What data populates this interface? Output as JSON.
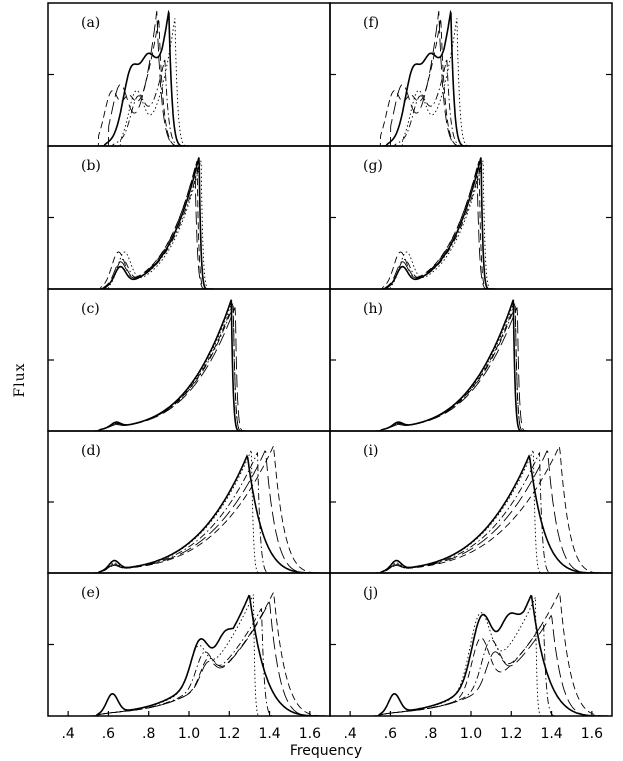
{
  "chart_data": {
    "type": "line",
    "xlabel": "Frequency",
    "ylabel": "Flux",
    "xlim": [
      0.3,
      1.7
    ],
    "x_ticks": [
      ".4",
      ".6",
      ".8",
      "1.0",
      "1.2",
      "1.4",
      "1.6"
    ],
    "x_tick_values": [
      0.4,
      0.6,
      0.8,
      1.0,
      1.2,
      1.4,
      1.6
    ],
    "grid": false,
    "layout": "5 rows x 2 columns of stacked panels sharing the frequency axis",
    "line_styles": [
      "solid",
      "dashed",
      "dotted",
      "dash-dot",
      "long-dash"
    ],
    "panels": [
      {
        "label": "(a)",
        "series": [
          {
            "style": "solid",
            "start": 0.58,
            "end": 0.97,
            "peak_x": 0.9,
            "peak_y": 1.0,
            "shoulders": [
              [
                0.72,
                0.62
              ],
              [
                0.8,
                0.72
              ]
            ]
          },
          {
            "style": "dashed",
            "start": 0.55,
            "end": 0.95,
            "peak_x": 0.85,
            "peak_y": 0.95,
            "shoulders": [
              [
                0.62,
                0.45
              ],
              [
                0.7,
                0.4
              ]
            ]
          },
          {
            "style": "dotted",
            "start": 0.66,
            "end": 0.99,
            "peak_x": 0.93,
            "peak_y": 0.95,
            "shoulders": [
              [
                0.74,
                0.45
              ]
            ]
          },
          {
            "style": "dash-dot",
            "start": 0.62,
            "end": 0.96,
            "peak_x": 0.88,
            "peak_y": 0.65,
            "shoulders": [
              [
                0.75,
                0.4
              ]
            ]
          },
          {
            "style": "long-dash",
            "start": 0.6,
            "end": 0.95,
            "peak_x": 0.84,
            "peak_y": 1.0,
            "shoulders": [
              [
                0.66,
                0.5
              ]
            ]
          }
        ]
      },
      {
        "label": "(b)",
        "series": [
          {
            "style": "solid",
            "start": 0.58,
            "end": 1.09,
            "peak_x": 1.05,
            "peak_y": 0.98,
            "shoulders": [
              [
                0.66,
                0.18
              ]
            ]
          },
          {
            "style": "dashed",
            "start": 0.56,
            "end": 1.08,
            "peak_x": 1.04,
            "peak_y": 0.95,
            "shoulders": [
              [
                0.65,
                0.3
              ]
            ]
          },
          {
            "style": "dotted",
            "start": 0.6,
            "end": 1.1,
            "peak_x": 1.06,
            "peak_y": 0.96,
            "shoulders": [
              [
                0.68,
                0.3
              ]
            ]
          },
          {
            "style": "dash-dot",
            "start": 0.58,
            "end": 1.09,
            "peak_x": 1.05,
            "peak_y": 0.92,
            "shoulders": [
              [
                0.67,
                0.24
              ]
            ]
          },
          {
            "style": "long-dash",
            "start": 0.57,
            "end": 1.08,
            "peak_x": 1.03,
            "peak_y": 0.9,
            "shoulders": [
              [
                0.66,
                0.22
              ]
            ]
          }
        ]
      },
      {
        "label": "(c)",
        "series": [
          {
            "style": "solid",
            "start": 0.55,
            "end": 1.25,
            "peak_x": 1.21,
            "peak_y": 0.98,
            "shoulders": [
              [
                0.64,
                0.07
              ]
            ]
          },
          {
            "style": "dashed",
            "start": 0.55,
            "end": 1.26,
            "peak_x": 1.22,
            "peak_y": 0.96,
            "shoulders": [
              [
                0.64,
                0.06
              ]
            ]
          },
          {
            "style": "dotted",
            "start": 0.55,
            "end": 1.25,
            "peak_x": 1.21,
            "peak_y": 0.95,
            "shoulders": [
              [
                0.64,
                0.06
              ]
            ]
          },
          {
            "style": "dash-dot",
            "start": 0.55,
            "end": 1.26,
            "peak_x": 1.22,
            "peak_y": 0.94,
            "shoulders": [
              [
                0.64,
                0.05
              ]
            ]
          },
          {
            "style": "long-dash",
            "start": 0.55,
            "end": 1.27,
            "peak_x": 1.23,
            "peak_y": 0.93,
            "shoulders": [
              [
                0.64,
                0.05
              ]
            ]
          }
        ]
      },
      {
        "label": "(d)",
        "series": [
          {
            "style": "solid",
            "start": 0.55,
            "end": 1.62,
            "peak_x": 1.29,
            "peak_y": 0.88,
            "shoulders": [
              [
                0.63,
                0.1
              ]
            ]
          },
          {
            "style": "dashed",
            "start": 0.55,
            "end": 1.65,
            "peak_x": 1.42,
            "peak_y": 0.95,
            "shoulders": [
              [
                0.63,
                0.07
              ]
            ]
          },
          {
            "style": "dotted",
            "start": 0.55,
            "end": 1.35,
            "peak_x": 1.31,
            "peak_y": 0.92,
            "shoulders": [
              [
                0.63,
                0.08
              ]
            ]
          },
          {
            "style": "dash-dot",
            "start": 0.55,
            "end": 1.4,
            "peak_x": 1.34,
            "peak_y": 0.9,
            "shoulders": [
              [
                0.63,
                0.07
              ]
            ]
          },
          {
            "style": "long-dash",
            "start": 0.55,
            "end": 1.6,
            "peak_x": 1.38,
            "peak_y": 0.92,
            "shoulders": [
              [
                0.63,
                0.06
              ]
            ]
          }
        ]
      },
      {
        "label": "(e)",
        "series": [
          {
            "style": "solid",
            "start": 0.54,
            "end": 1.65,
            "peak_x": 1.3,
            "peak_y": 0.9,
            "shoulders": [
              [
                0.62,
                0.18
              ],
              [
                1.06,
                0.6
              ],
              [
                1.2,
                0.65
              ]
            ]
          },
          {
            "style": "dashed",
            "start": 0.54,
            "end": 1.68,
            "peak_x": 1.42,
            "peak_y": 0.92,
            "shoulders": [
              [
                1.1,
                0.45
              ]
            ]
          },
          {
            "style": "dotted",
            "start": 0.54,
            "end": 1.35,
            "peak_x": 1.32,
            "peak_y": 0.9,
            "shoulders": [
              [
                1.05,
                0.55
              ]
            ]
          },
          {
            "style": "dash-dot",
            "start": 0.54,
            "end": 1.42,
            "peak_x": 1.36,
            "peak_y": 0.8,
            "shoulders": [
              [
                1.08,
                0.5
              ]
            ]
          },
          {
            "style": "long-dash",
            "start": 0.54,
            "end": 1.62,
            "peak_x": 1.4,
            "peak_y": 0.85,
            "shoulders": [
              [
                1.1,
                0.42
              ]
            ]
          }
        ]
      },
      {
        "label": "(f)",
        "series": [
          {
            "style": "solid",
            "start": 0.58,
            "end": 0.97,
            "peak_x": 0.9,
            "peak_y": 1.0,
            "shoulders": [
              [
                0.72,
                0.62
              ],
              [
                0.8,
                0.72
              ]
            ]
          },
          {
            "style": "dashed",
            "start": 0.55,
            "end": 0.95,
            "peak_x": 0.85,
            "peak_y": 0.95,
            "shoulders": [
              [
                0.62,
                0.45
              ],
              [
                0.7,
                0.4
              ]
            ]
          },
          {
            "style": "dotted",
            "start": 0.66,
            "end": 0.99,
            "peak_x": 0.93,
            "peak_y": 0.95,
            "shoulders": [
              [
                0.74,
                0.45
              ]
            ]
          },
          {
            "style": "dash-dot",
            "start": 0.62,
            "end": 0.96,
            "peak_x": 0.88,
            "peak_y": 0.65,
            "shoulders": [
              [
                0.75,
                0.4
              ]
            ]
          },
          {
            "style": "long-dash",
            "start": 0.6,
            "end": 0.95,
            "peak_x": 0.84,
            "peak_y": 1.0,
            "shoulders": [
              [
                0.66,
                0.5
              ]
            ]
          }
        ]
      },
      {
        "label": "(g)",
        "series": [
          {
            "style": "solid",
            "start": 0.58,
            "end": 1.09,
            "peak_x": 1.05,
            "peak_y": 0.98,
            "shoulders": [
              [
                0.66,
                0.18
              ]
            ]
          },
          {
            "style": "dashed",
            "start": 0.56,
            "end": 1.08,
            "peak_x": 1.04,
            "peak_y": 0.95,
            "shoulders": [
              [
                0.65,
                0.3
              ]
            ]
          },
          {
            "style": "dotted",
            "start": 0.6,
            "end": 1.1,
            "peak_x": 1.06,
            "peak_y": 0.96,
            "shoulders": [
              [
                0.68,
                0.3
              ]
            ]
          },
          {
            "style": "dash-dot",
            "start": 0.58,
            "end": 1.09,
            "peak_x": 1.05,
            "peak_y": 0.92,
            "shoulders": [
              [
                0.67,
                0.24
              ]
            ]
          },
          {
            "style": "long-dash",
            "start": 0.57,
            "end": 1.08,
            "peak_x": 1.03,
            "peak_y": 0.9,
            "shoulders": [
              [
                0.66,
                0.22
              ]
            ]
          }
        ]
      },
      {
        "label": "(h)",
        "series": [
          {
            "style": "solid",
            "start": 0.55,
            "end": 1.25,
            "peak_x": 1.21,
            "peak_y": 0.98,
            "shoulders": [
              [
                0.64,
                0.07
              ]
            ]
          },
          {
            "style": "dashed",
            "start": 0.55,
            "end": 1.26,
            "peak_x": 1.22,
            "peak_y": 0.96,
            "shoulders": [
              [
                0.64,
                0.06
              ]
            ]
          },
          {
            "style": "dotted",
            "start": 0.55,
            "end": 1.25,
            "peak_x": 1.21,
            "peak_y": 0.95,
            "shoulders": [
              [
                0.64,
                0.06
              ]
            ]
          },
          {
            "style": "dash-dot",
            "start": 0.55,
            "end": 1.26,
            "peak_x": 1.22,
            "peak_y": 0.94,
            "shoulders": [
              [
                0.64,
                0.05
              ]
            ]
          },
          {
            "style": "long-dash",
            "start": 0.55,
            "end": 1.27,
            "peak_x": 1.23,
            "peak_y": 0.93,
            "shoulders": [
              [
                0.64,
                0.05
              ]
            ]
          }
        ]
      },
      {
        "label": "(i)",
        "series": [
          {
            "style": "solid",
            "start": 0.55,
            "end": 1.62,
            "peak_x": 1.29,
            "peak_y": 0.88,
            "shoulders": [
              [
                0.63,
                0.1
              ]
            ]
          },
          {
            "style": "dashed",
            "start": 0.55,
            "end": 1.65,
            "peak_x": 1.44,
            "peak_y": 0.95,
            "shoulders": [
              [
                0.63,
                0.07
              ]
            ]
          },
          {
            "style": "dotted",
            "start": 0.55,
            "end": 1.35,
            "peak_x": 1.31,
            "peak_y": 0.92,
            "shoulders": [
              [
                0.63,
                0.08
              ]
            ]
          },
          {
            "style": "dash-dot",
            "start": 0.55,
            "end": 1.4,
            "peak_x": 1.34,
            "peak_y": 0.9,
            "shoulders": [
              [
                0.63,
                0.07
              ]
            ]
          },
          {
            "style": "long-dash",
            "start": 0.55,
            "end": 1.6,
            "peak_x": 1.38,
            "peak_y": 0.92,
            "shoulders": [
              [
                0.63,
                0.06
              ]
            ]
          }
        ]
      },
      {
        "label": "(j)",
        "series": [
          {
            "style": "solid",
            "start": 0.54,
            "end": 1.65,
            "peak_x": 1.3,
            "peak_y": 0.9,
            "shoulders": [
              [
                0.62,
                0.18
              ],
              [
                1.06,
                0.8
              ],
              [
                1.2,
                0.78
              ]
            ]
          },
          {
            "style": "dashed",
            "start": 0.54,
            "end": 1.68,
            "peak_x": 1.44,
            "peak_y": 0.92,
            "shoulders": [
              [
                1.05,
                0.62
              ]
            ]
          },
          {
            "style": "dotted",
            "start": 0.54,
            "end": 1.35,
            "peak_x": 1.32,
            "peak_y": 0.88,
            "shoulders": [
              [
                1.05,
                0.82
              ]
            ]
          },
          {
            "style": "dash-dot",
            "start": 0.54,
            "end": 1.42,
            "peak_x": 1.36,
            "peak_y": 0.7,
            "shoulders": [
              [
                1.1,
                0.6
              ]
            ]
          },
          {
            "style": "long-dash",
            "start": 0.54,
            "end": 1.62,
            "peak_x": 1.4,
            "peak_y": 0.75,
            "shoulders": [
              [
                1.12,
                0.5
              ]
            ]
          }
        ]
      }
    ]
  }
}
